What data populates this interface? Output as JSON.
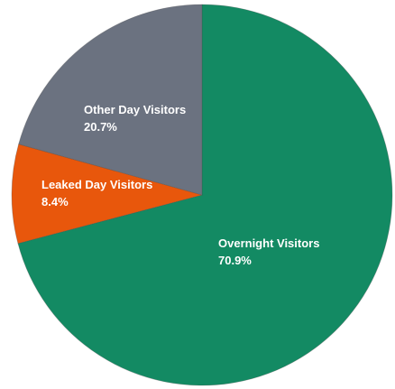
{
  "chart_data": {
    "type": "pie",
    "title": "",
    "slices": [
      {
        "label": "Overnight Visitors",
        "value": 70.9,
        "value_label": "70.9%",
        "color": "#138a63"
      },
      {
        "label": "Leaked Day Visitors",
        "value": 8.4,
        "value_label": "8.4%",
        "color": "#e8570c"
      },
      {
        "label": "Other Day Visitors",
        "value": 20.7,
        "value_label": "20.7%",
        "color": "#6b7280"
      }
    ],
    "start_angle": "12 o'clock",
    "direction": "clockwise",
    "legend": "none",
    "labels": "inside slices"
  }
}
